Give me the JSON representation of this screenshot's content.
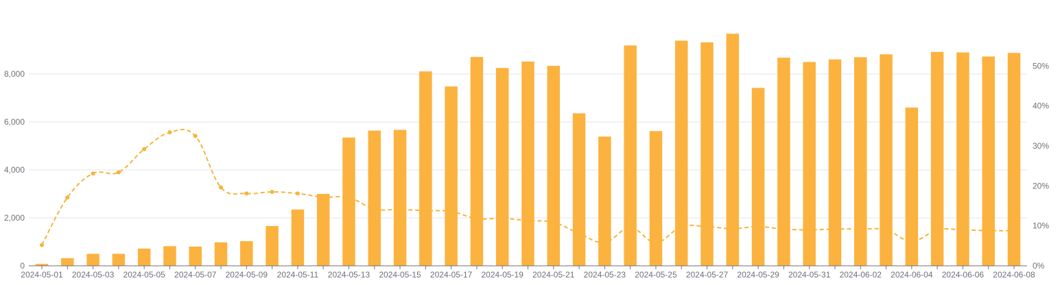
{
  "chart_data": {
    "type": "bar+line",
    "x": [
      "2024-05-01",
      "2024-05-02",
      "2024-05-03",
      "2024-05-04",
      "2024-05-05",
      "2024-05-06",
      "2024-05-07",
      "2024-05-08",
      "2024-05-09",
      "2024-05-10",
      "2024-05-11",
      "2024-05-12",
      "2024-05-13",
      "2024-05-14",
      "2024-05-15",
      "2024-05-16",
      "2024-05-17",
      "2024-05-18",
      "2024-05-19",
      "2024-05-20",
      "2024-05-21",
      "2024-05-22",
      "2024-05-23",
      "2024-05-24",
      "2024-05-25",
      "2024-05-26",
      "2024-05-27",
      "2024-05-28",
      "2024-05-29",
      "2024-05-30",
      "2024-05-31",
      "2024-06-01",
      "2024-06-02",
      "2024-06-03",
      "2024-06-04",
      "2024-06-05",
      "2024-06-06",
      "2024-06-07",
      "2024-06-08"
    ],
    "x_tick_labels": [
      "2024-05-01",
      "2024-05-03",
      "2024-05-05",
      "2024-05-07",
      "2024-05-09",
      "2024-05-11",
      "2024-05-13",
      "2024-05-15",
      "2024-05-17",
      "2024-05-19",
      "2024-05-21",
      "2024-05-23",
      "2024-05-25",
      "2024-05-27",
      "2024-05-29",
      "2024-05-31",
      "2024-06-02",
      "2024-06-04",
      "2024-06-06",
      "2024-06-08"
    ],
    "series": [
      {
        "type": "bar",
        "axis": "left",
        "color": "#fcb23f",
        "values": [
          80,
          320,
          500,
          500,
          720,
          820,
          800,
          980,
          1030,
          1660,
          2350,
          3000,
          5350,
          5640,
          5670,
          8110,
          7480,
          8710,
          8250,
          8520,
          8340,
          6360,
          5390,
          9190,
          5620,
          9390,
          9320,
          9680,
          7420,
          8680,
          8500,
          8610,
          8700,
          8820,
          6600,
          8920,
          8900,
          8730,
          8880
        ]
      },
      {
        "type": "line",
        "axis": "right",
        "color": "#f5b43a",
        "dashed": true,
        "smooth": true,
        "values": [
          5.2,
          17.1,
          23.1,
          23.4,
          29.2,
          33.4,
          32.5,
          19.6,
          18.1,
          18.5,
          18.1,
          17.2,
          17.1,
          14.2,
          14.1,
          13.8,
          13.6,
          11.8,
          11.9,
          11.3,
          10.9,
          8.1,
          5.8,
          9.6,
          5.8,
          9.8,
          9.8,
          9.3,
          9.8,
          9.2,
          9.0,
          9.2,
          9.2,
          9.0,
          6.1,
          9.0,
          9.0,
          8.8,
          8.8
        ],
        "markers": [
          0,
          1,
          2,
          3,
          4,
          5,
          6,
          7,
          8,
          9,
          10
        ]
      }
    ],
    "y_left": {
      "min": 0,
      "max": 10000,
      "ticks": [
        0,
        2000,
        4000,
        6000,
        8000
      ],
      "tick_labels": [
        "0",
        "2,000",
        "4,000",
        "6,000",
        "8,000"
      ]
    },
    "y_right": {
      "min": 0,
      "max": 60,
      "ticks": [
        0,
        10,
        20,
        30,
        40,
        50
      ],
      "tick_labels": [
        "0%",
        "10%",
        "20%",
        "30%",
        "40%",
        "50%"
      ]
    },
    "grid": true,
    "title": "",
    "xlabel": "",
    "ylabel": "",
    "colors": {
      "grid": "#e0e6f1",
      "axis": "#6e7079",
      "bar": "#fcb23f",
      "line": "#f5b43a"
    }
  }
}
